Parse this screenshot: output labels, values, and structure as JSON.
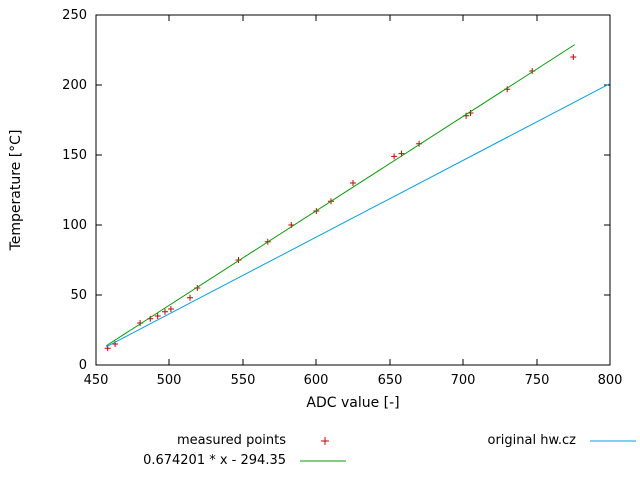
{
  "chart_data": {
    "type": "scatter",
    "title": "",
    "xlabel": "ADC value [-]",
    "ylabel": "Temperature [°C]",
    "xlim": [
      450,
      800
    ],
    "ylim": [
      0,
      250
    ],
    "xticks": [
      450,
      500,
      550,
      600,
      650,
      700,
      750,
      800
    ],
    "yticks": [
      0,
      50,
      100,
      150,
      200,
      250
    ],
    "grid": false,
    "legend_position": "below-plot",
    "series": [
      {
        "name": "measured points",
        "type": "points",
        "marker": "+",
        "color": "#cc0000",
        "points": [
          [
            458,
            12
          ],
          [
            463,
            15
          ],
          [
            480,
            30
          ],
          [
            487,
            33
          ],
          [
            492,
            35
          ],
          [
            497,
            38
          ],
          [
            501,
            40
          ],
          [
            514,
            48
          ],
          [
            519,
            55
          ],
          [
            547,
            75
          ],
          [
            567,
            88
          ],
          [
            583,
            100
          ],
          [
            600,
            110
          ],
          [
            610,
            117
          ],
          [
            625,
            130
          ],
          [
            653,
            149
          ],
          [
            658,
            151
          ],
          [
            670,
            158
          ],
          [
            702,
            178
          ],
          [
            705,
            180
          ],
          [
            730,
            197
          ],
          [
            747,
            210
          ],
          [
            775,
            220
          ]
        ]
      },
      {
        "name": "0.674201 * x - 294.35",
        "type": "linefn",
        "color": "#00a000",
        "slope": 0.674201,
        "intercept": -294.35,
        "x_start": 457,
        "x_end": 776
      },
      {
        "name": "original hw.cz",
        "type": "segment",
        "color": "#00a2e8",
        "points": [
          [
            457,
            13
          ],
          [
            800,
            201
          ]
        ]
      }
    ]
  }
}
